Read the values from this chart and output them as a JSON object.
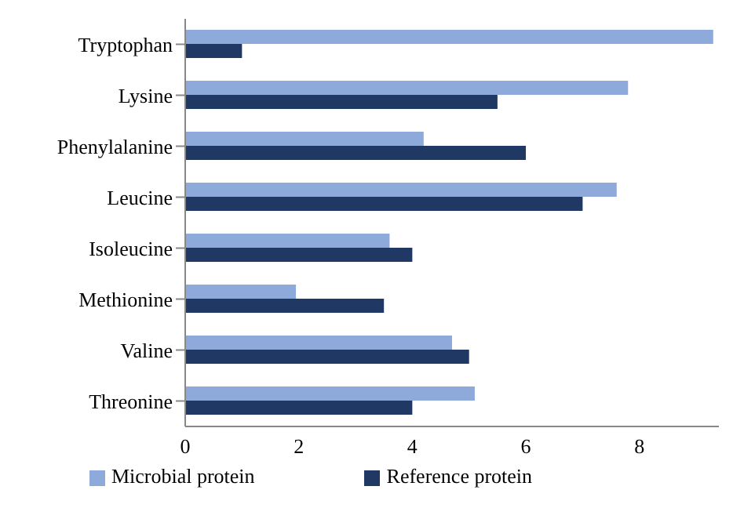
{
  "chart_data": {
    "type": "bar",
    "orientation": "horizontal",
    "categories": [
      "Tryptophan",
      "Lysine",
      "Phenylalanine",
      "Leucine",
      "Isoleucine",
      "Methionine",
      "Valine",
      "Threonine"
    ],
    "series": [
      {
        "name": "Microbial protein",
        "color": "#8eaadb",
        "values": [
          9.3,
          7.8,
          4.2,
          7.6,
          3.6,
          1.95,
          4.7,
          5.1
        ]
      },
      {
        "name": "Reference protein",
        "color": "#1f3864",
        "values": [
          1.0,
          5.5,
          6.0,
          7.0,
          4.0,
          3.5,
          5.0,
          4.0
        ]
      }
    ],
    "xlim": [
      0,
      9.4
    ],
    "xticks": [
      0,
      2,
      4,
      6,
      8
    ],
    "grid": false,
    "legend": "bottom"
  }
}
